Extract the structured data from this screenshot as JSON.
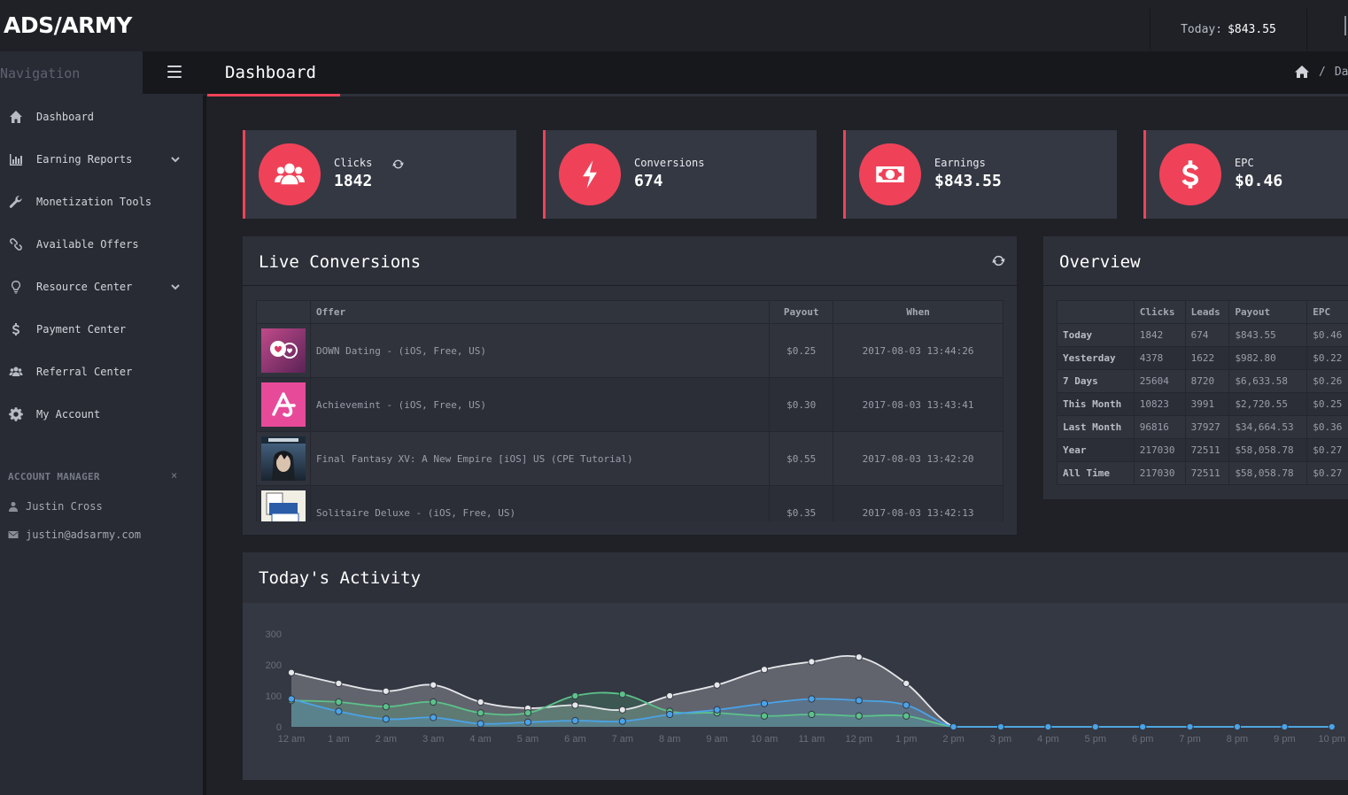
{
  "brand": {
    "logo": "ADS/ARMY"
  },
  "topbar": {
    "today_label": "Today:",
    "today_value": "$843.55"
  },
  "sidebar": {
    "nav_title": "Navigation",
    "items": [
      {
        "label": "Dashboard",
        "icon": "home-icon"
      },
      {
        "label": "Earning Reports",
        "icon": "bar-chart-icon",
        "has_chevron": true
      },
      {
        "label": "Monetization Tools",
        "icon": "wrench-icon"
      },
      {
        "label": "Available Offers",
        "icon": "link-icon"
      },
      {
        "label": "Resource Center",
        "icon": "lightbulb-icon",
        "has_chevron": true
      },
      {
        "label": "Payment Center",
        "icon": "dollar-icon"
      },
      {
        "label": "Referral Center",
        "icon": "users-icon"
      },
      {
        "label": "My Account",
        "icon": "gear-icon"
      }
    ],
    "account_manager": {
      "title": "ACCOUNT MANAGER",
      "close": "×",
      "name": "Justin Cross",
      "email": "justin@adsarmy.com"
    }
  },
  "page": {
    "title": "Dashboard",
    "breadcrumb_sep": "/",
    "breadcrumb_current": "Da"
  },
  "stats": [
    {
      "label": "Clicks",
      "value": "1842",
      "icon": "users-icon"
    },
    {
      "label": "Conversions",
      "value": "674",
      "icon": "bolt-icon"
    },
    {
      "label": "Earnings",
      "value": "$843.55",
      "icon": "money-icon"
    },
    {
      "label": "EPC",
      "value": "$0.46",
      "icon": "dollar-icon"
    }
  ],
  "live_conversions": {
    "title": "Live Conversions",
    "columns": [
      "Offer",
      "Payout",
      "When"
    ],
    "rows": [
      {
        "offer": "DOWN Dating - (iOS, Free, US)",
        "payout": "$0.25",
        "when": "2017-08-03 13:44:26"
      },
      {
        "offer": "Achievemint - (iOS, Free, US)",
        "payout": "$0.30",
        "when": "2017-08-03 13:43:41"
      },
      {
        "offer": "Final Fantasy XV: A New Empire [iOS] US (CPE Tutorial)",
        "payout": "$0.55",
        "when": "2017-08-03 13:42:20"
      },
      {
        "offer": "Solitaire Deluxe - (iOS, Free, US)",
        "payout": "$0.35",
        "when": "2017-08-03 13:42:13"
      }
    ]
  },
  "overview": {
    "title": "Overview",
    "columns": [
      "Clicks",
      "Leads",
      "Payout",
      "EPC"
    ],
    "rows": [
      {
        "label": "Today",
        "clicks": "1842",
        "leads": "674",
        "payout": "$843.55",
        "epc": "$0.46"
      },
      {
        "label": "Yesterday",
        "clicks": "4378",
        "leads": "1622",
        "payout": "$982.80",
        "epc": "$0.22"
      },
      {
        "label": "7 Days",
        "clicks": "25604",
        "leads": "8720",
        "payout": "$6,633.58",
        "epc": "$0.26"
      },
      {
        "label": "This Month",
        "clicks": "10823",
        "leads": "3991",
        "payout": "$2,720.55",
        "epc": "$0.25"
      },
      {
        "label": "Last Month",
        "clicks": "96816",
        "leads": "37927",
        "payout": "$34,664.53",
        "epc": "$0.36"
      },
      {
        "label": "Year",
        "clicks": "217030",
        "leads": "72511",
        "payout": "$58,058.78",
        "epc": "$0.27"
      },
      {
        "label": "All Time",
        "clicks": "217030",
        "leads": "72511",
        "payout": "$58,058.78",
        "epc": "$0.27"
      }
    ]
  },
  "activity": {
    "title": "Today's Activity"
  },
  "chart_data": {
    "type": "area",
    "categories": [
      "12 am",
      "1 am",
      "2 am",
      "3 am",
      "4 am",
      "5 am",
      "6 am",
      "7 am",
      "8 am",
      "9 am",
      "10 am",
      "11 am",
      "12 pm",
      "1 pm",
      "2 pm",
      "3 pm",
      "4 pm",
      "5 pm",
      "6 pm",
      "7 pm",
      "8 pm",
      "9 pm",
      "10 pm"
    ],
    "yticks": [
      0,
      100,
      200,
      300
    ],
    "ylim": [
      0,
      300
    ],
    "series": [
      {
        "values": [
          175,
          140,
          115,
          135,
          80,
          60,
          70,
          55,
          100,
          135,
          185,
          210,
          225,
          140,
          0,
          0,
          0,
          0,
          0,
          0,
          0,
          0,
          0
        ],
        "color": "#e6e7ea"
      },
      {
        "values": [
          85,
          80,
          65,
          80,
          45,
          45,
          100,
          105,
          50,
          45,
          35,
          40,
          35,
          35,
          0,
          0,
          0,
          0,
          0,
          0,
          0,
          0,
          0
        ],
        "color": "#5cc28a"
      },
      {
        "values": [
          90,
          50,
          25,
          30,
          10,
          15,
          20,
          18,
          40,
          55,
          75,
          90,
          85,
          70,
          0,
          0,
          0,
          0,
          0,
          0,
          0,
          0,
          0
        ],
        "color": "#4aa3e8"
      }
    ]
  }
}
